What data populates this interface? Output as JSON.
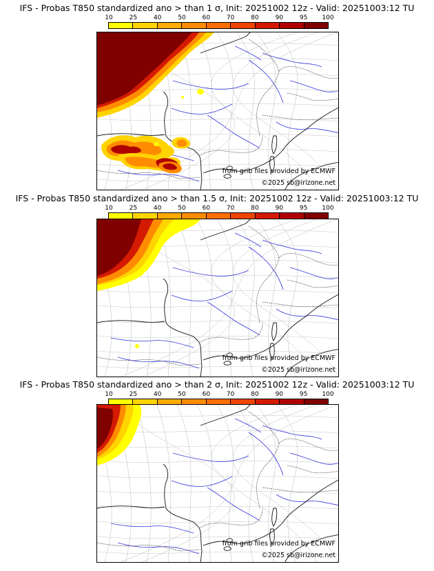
{
  "colorscale": {
    "ticks": [
      "10",
      "25",
      "40",
      "50",
      "60",
      "70",
      "80",
      "90",
      "95",
      "100"
    ],
    "colors": [
      "#ffff00",
      "#ffd400",
      "#ffaa00",
      "#ff8c00",
      "#ff6e00",
      "#f04400",
      "#d41a00",
      "#b00000",
      "#800000"
    ]
  },
  "panels": [
    {
      "title": "IFS - Probas T850  standardized ano > than 1 σ, Init: 20251002 12z - Valid: 20251003:12 TU",
      "credit_source": "from grib files provided by ECMWF",
      "credit_copyright": "©2025 sb@irizone.net"
    },
    {
      "title": "IFS - Probas T850  standardized ano > than 1.5 σ, Init: 20251002 12z - Valid: 20251003:12 TU",
      "credit_source": "from grib files provided by ECMWF",
      "credit_copyright": "©2025 sb@irizone.net"
    },
    {
      "title": "IFS - Probas T850  standardized ano > than 2 σ, Init: 20251002 12z - Valid: 20251003:12 TU",
      "credit_source": "from grib files provided by ECMWF",
      "credit_copyright": "©2025 sb@irizone.net"
    }
  ]
}
